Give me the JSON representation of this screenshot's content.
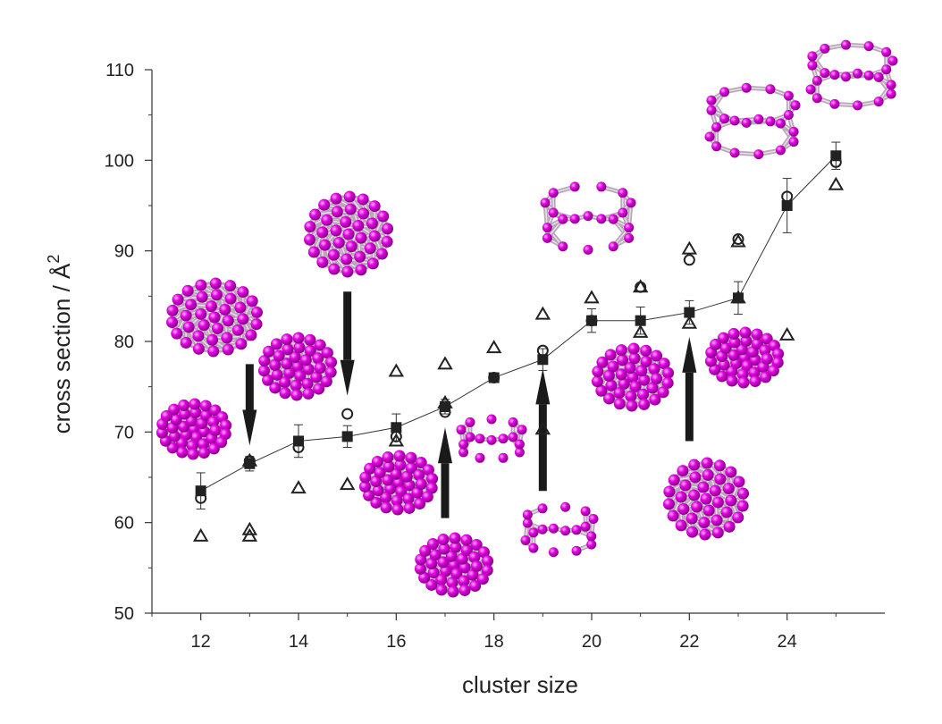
{
  "chart_data": {
    "type": "scatter",
    "title": "",
    "xlabel": "cluster size",
    "ylabel": "cross section / Å",
    "ylabel_superscript": "2",
    "xlim": [
      11,
      26
    ],
    "ylim": [
      50,
      110
    ],
    "xticks": [
      12,
      14,
      16,
      18,
      20,
      22,
      24
    ],
    "yticks": [
      50,
      60,
      70,
      80,
      90,
      100,
      110
    ],
    "grid": false,
    "legend": "none",
    "colors": {
      "line": "#333333",
      "marker": "#222222",
      "atom": "#d400d4",
      "bond": "#b8a8b8",
      "arrow": "#1a1a1a"
    },
    "series": [
      {
        "marker": "filled-square-with-line",
        "x": [
          12,
          13,
          14,
          15,
          16,
          17,
          18,
          19,
          20,
          21,
          22,
          23,
          24,
          25
        ],
        "y": [
          63.5,
          66.5,
          69.0,
          69.5,
          70.5,
          72.8,
          76.0,
          78.0,
          82.3,
          82.3,
          83.2,
          84.8,
          95.0,
          100.5
        ],
        "err": [
          2.0,
          0.8,
          1.8,
          1.2,
          1.5,
          0.8,
          0.5,
          1.2,
          1.3,
          1.5,
          1.3,
          1.8,
          3.0,
          1.5
        ]
      },
      {
        "marker": "open-circle",
        "x": [
          12,
          13,
          14,
          15,
          16,
          17,
          18,
          19,
          20,
          21,
          22,
          23,
          24,
          25
        ],
        "y": [
          62.7,
          66.8,
          68.3,
          72.0,
          69.5,
          72.2,
          76.0,
          79.0,
          82.3,
          86.0,
          89.0,
          91.3,
          96.0,
          99.8
        ]
      },
      {
        "marker": "open-triangle",
        "x": [
          12,
          13,
          13,
          13,
          14,
          15,
          16,
          16,
          17,
          17,
          18,
          19,
          19,
          20,
          21,
          21,
          22,
          22,
          23,
          23,
          24,
          25
        ],
        "y": [
          58.5,
          59.2,
          58.5,
          66.8,
          63.8,
          64.2,
          76.7,
          69.0,
          77.5,
          73.2,
          79.3,
          83.0,
          70.3,
          84.8,
          86.0,
          81.0,
          90.2,
          82.0,
          91.0,
          84.8,
          80.7,
          97.3
        ]
      }
    ],
    "arrows": [
      {
        "x": 13,
        "from_y": 77.5,
        "to_y": 68.5
      },
      {
        "x": 15,
        "from_y": 85.5,
        "to_y": 74.0
      },
      {
        "x": 17,
        "from_y": 60.5,
        "to_y": 70.5
      },
      {
        "x": 19,
        "from_y": 63.5,
        "to_y": 77.0
      },
      {
        "x": 22,
        "from_y": 69.0,
        "to_y": 80.5
      }
    ]
  }
}
